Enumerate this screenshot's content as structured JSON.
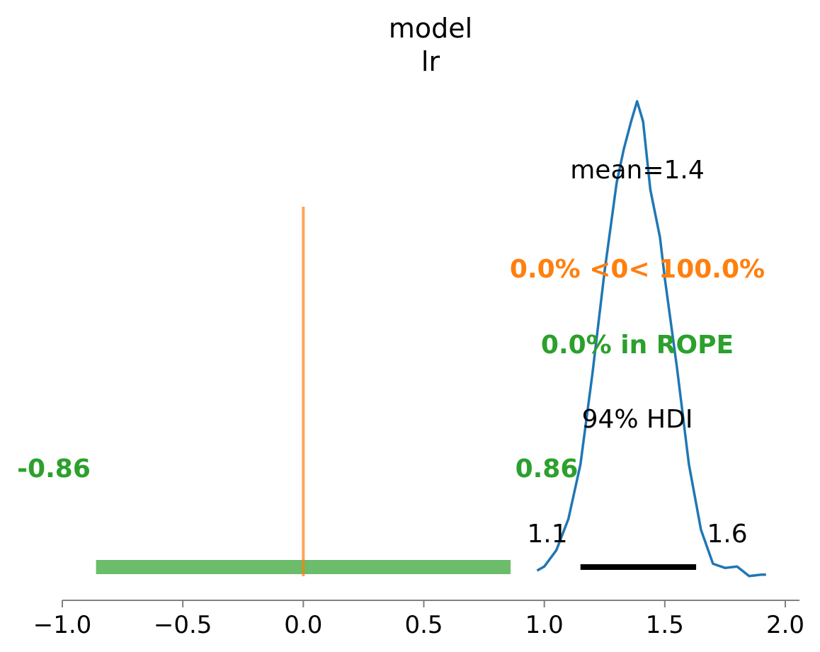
{
  "chart_data": {
    "type": "density",
    "title_lines": [
      "model",
      "lr"
    ],
    "xlim": [
      -1.0,
      2.05
    ],
    "x_ticks": [
      "−1.0",
      "−0.5",
      "0.0",
      "0.5",
      "1.0",
      "1.5",
      "2.0"
    ],
    "x_tick_values": [
      -1.0,
      -0.5,
      0.0,
      0.5,
      1.0,
      1.5,
      2.0
    ],
    "density_curve": {
      "color": "#1f77b4",
      "x": [
        0.97,
        1.0,
        1.05,
        1.1,
        1.15,
        1.2,
        1.25,
        1.3,
        1.33,
        1.36,
        1.385,
        1.41,
        1.44,
        1.48,
        1.5,
        1.55,
        1.6,
        1.65,
        1.7,
        1.75,
        1.8,
        1.85,
        1.9,
        1.92
      ],
      "y": [
        0.0,
        0.03,
        0.15,
        0.38,
        0.78,
        1.45,
        2.2,
        2.85,
        3.1,
        3.3,
        3.45,
        3.3,
        2.8,
        2.45,
        2.15,
        1.5,
        0.78,
        0.3,
        0.05,
        0.02,
        0.03,
        -0.04,
        -0.03,
        -0.03
      ]
    },
    "mean_label": "mean=1.4",
    "reference": {
      "value": 0.0,
      "label": "0.0% <0< 100.0%",
      "color": "#ff7f0e"
    },
    "rope": {
      "low": -0.86,
      "high": 0.86,
      "label": "0.0% in ROPE",
      "low_label": "-0.86",
      "high_label": "0.86",
      "color": "#2ca02c"
    },
    "hdi": {
      "label": "94% HDI",
      "low": 1.15,
      "high": 1.63,
      "low_label": "1.1",
      "high_label": "1.6"
    }
  }
}
